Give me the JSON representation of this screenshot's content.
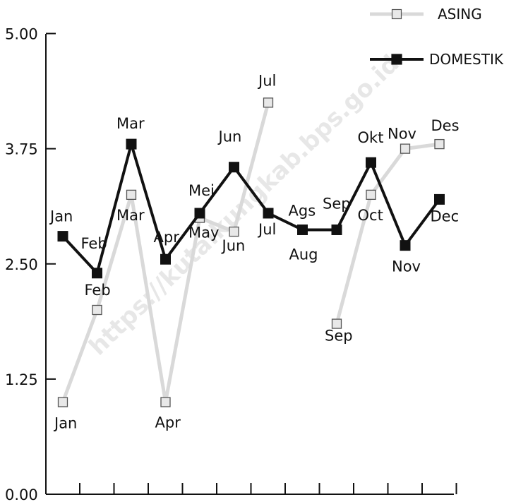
{
  "chart_data": {
    "type": "line",
    "x": [
      1,
      2,
      3,
      4,
      5,
      6,
      7,
      8,
      9,
      10,
      11,
      12
    ],
    "ylim": [
      0,
      5
    ],
    "yticks": [
      "0.00",
      "1.25",
      "2.50",
      "3.75",
      "5.00"
    ],
    "grid": false,
    "legend_position": "top-right",
    "series": [
      {
        "name": "ASING",
        "color": "#d9d9d9",
        "marker": "hollow-square",
        "values": [
          1.0,
          2.0,
          3.25,
          1.0,
          3.0,
          2.85,
          4.25,
          null,
          1.85,
          3.25,
          3.75,
          3.8
        ],
        "labels": [
          "Jan",
          "Feb",
          "Mar",
          "Apr",
          "May",
          "Jun",
          "Jul",
          "",
          "Sep",
          "Oct",
          "Nov",
          "Des"
        ]
      },
      {
        "name": "DOMESTIK",
        "color": "#111111",
        "marker": "filled-square",
        "values": [
          2.8,
          2.4,
          3.8,
          2.55,
          3.05,
          3.55,
          3.05,
          2.87,
          2.87,
          3.6,
          2.7,
          3.2
        ],
        "labels": [
          "Jan",
          "Feb",
          "Mar",
          "Apr",
          "Mei",
          "Jun",
          "Jul",
          "Aug",
          "Sep",
          "Okt",
          "Nov",
          "Dec"
        ]
      }
    ],
    "extra_labels": [
      "Ags"
    ]
  },
  "watermark": "https://kutaikungkab.bps.go.id"
}
